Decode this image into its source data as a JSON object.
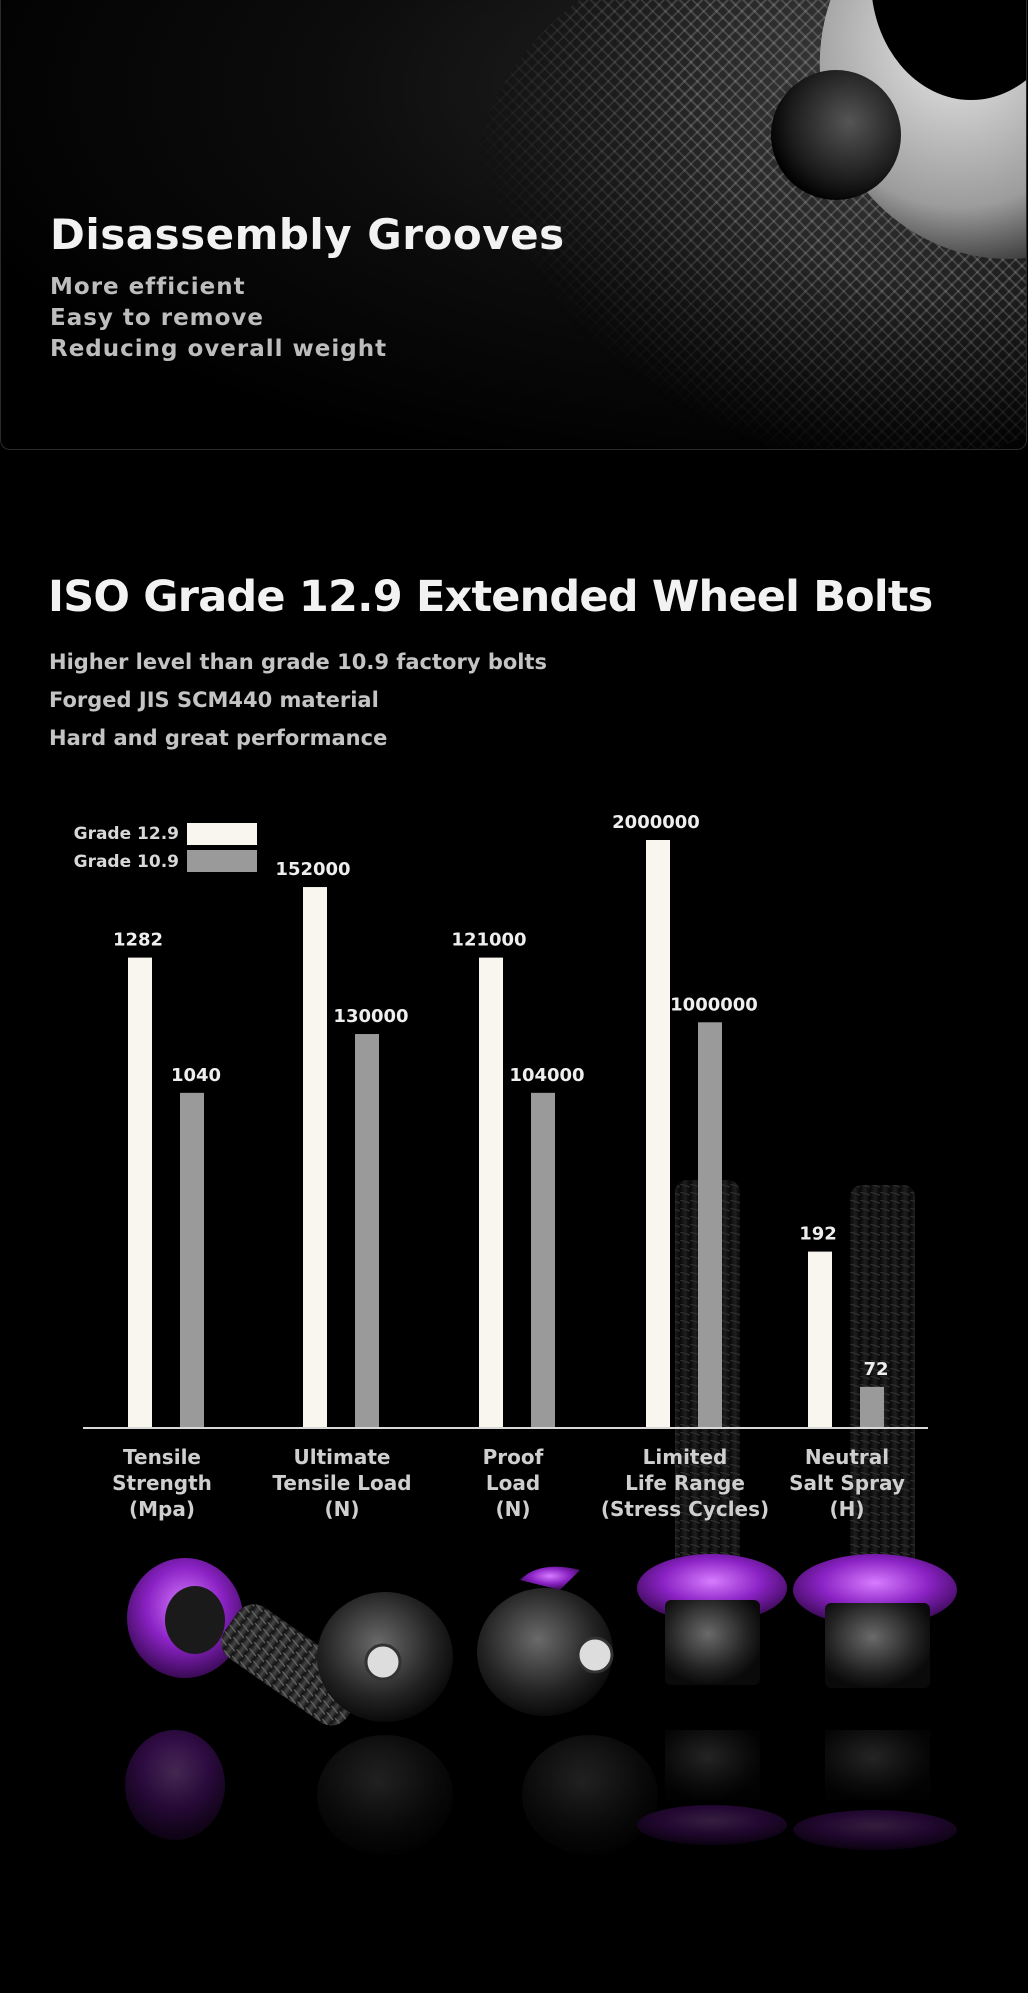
{
  "section1": {
    "title": "Disassembly Grooves",
    "bullets": [
      "More efficient",
      "Easy to remove",
      "Reducing overall weight"
    ]
  },
  "section2": {
    "title": "ISO Grade 12.9 Extended Wheel Bolts",
    "lines": [
      "Higher level than grade 10.9 factory bolts",
      "Forged JIS SCM440 material",
      "Hard and great performance"
    ]
  },
  "colors": {
    "grade129": "#f8f6ee",
    "grade109": "#9a9a9a",
    "accent": "#9b2fd0"
  },
  "chart_data": {
    "type": "bar",
    "categories": [
      [
        "Tensile",
        "Strength",
        "(Mpa)"
      ],
      [
        "Ultimate",
        "Tensile Load",
        "(N)"
      ],
      [
        "Proof",
        "Load",
        "(N)"
      ],
      [
        "Limited",
        "Life Range",
        "(Stress Cycles)"
      ],
      [
        "Neutral",
        "Salt Spray",
        "(H)"
      ]
    ],
    "series": [
      {
        "name": "Grade 12.9",
        "values": [
          1282,
          152000,
          121000,
          2000000,
          192
        ]
      },
      {
        "name": "Grade 10.9",
        "values": [
          1040,
          130000,
          104000,
          1000000,
          72
        ]
      }
    ],
    "value_labels": [
      [
        "1282",
        "152000",
        "121000",
        "2000000",
        "192"
      ],
      [
        "1040",
        "130000",
        "104000",
        "1000000",
        "72"
      ]
    ],
    "bar_fraction_of_scale": [
      [
        0.8,
        0.92,
        0.8,
        1.0,
        0.3
      ],
      [
        0.57,
        0.67,
        0.57,
        0.69,
        0.07
      ]
    ],
    "legend": "top-left",
    "grid": false
  }
}
